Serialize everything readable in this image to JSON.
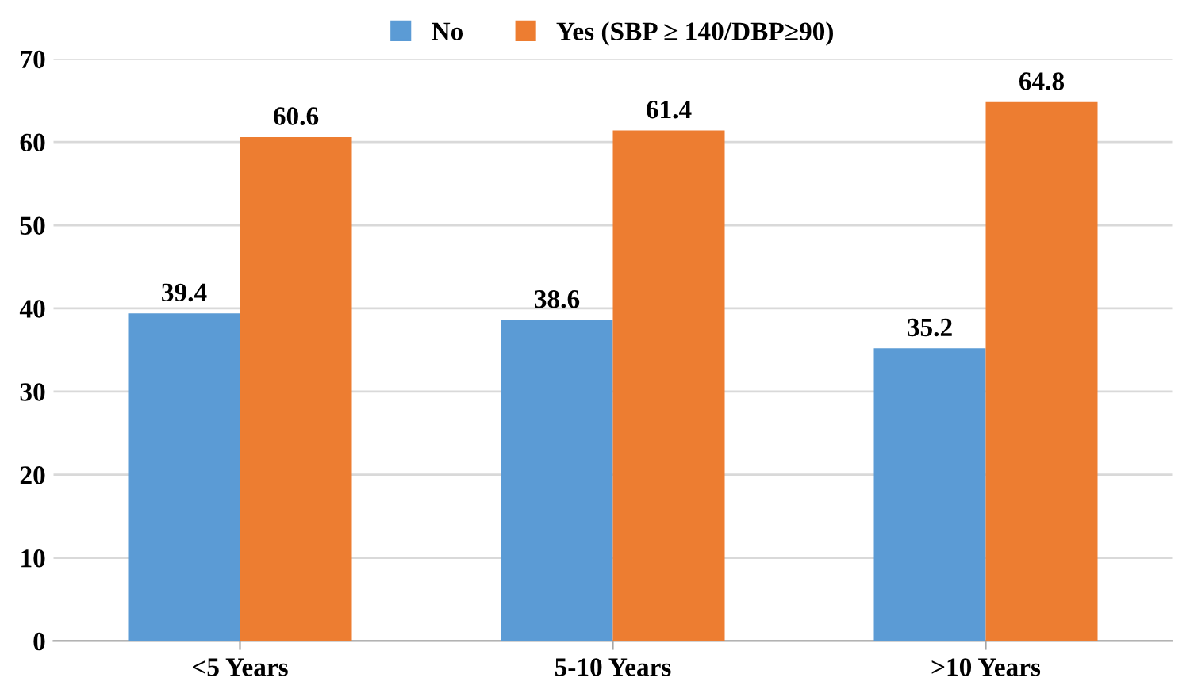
{
  "chart_data": {
    "type": "bar",
    "categories": [
      "<5 Years",
      "5-10 Years",
      ">10 Years"
    ],
    "series": [
      {
        "name": "No",
        "color": "#5b9bd5",
        "values": [
          39.4,
          38.6,
          35.2
        ]
      },
      {
        "name": "Yes (SBP ≥ 140/DBP≥90)",
        "color": "#ed7d31",
        "values": [
          60.6,
          61.4,
          64.8
        ]
      }
    ],
    "ylim": [
      0,
      70
    ],
    "yticks": [
      0,
      10,
      20,
      30,
      40,
      50,
      60,
      70
    ],
    "grid": "y",
    "legend": "top",
    "data_labels": true
  }
}
